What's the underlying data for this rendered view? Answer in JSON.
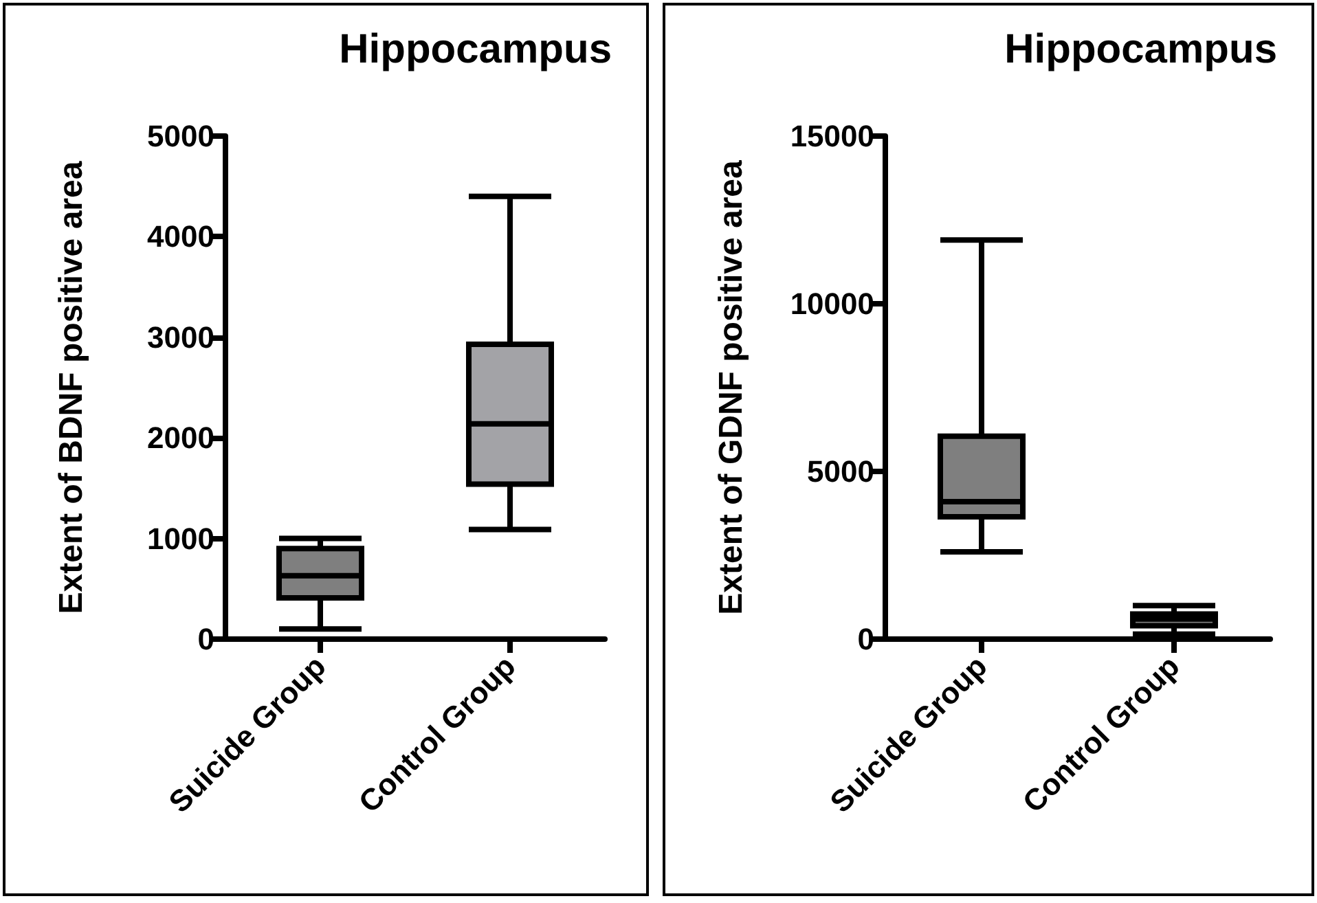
{
  "chart_data": [
    {
      "type": "box",
      "title": "Hippocampus",
      "ylabel": "Extent of BDNF positive area",
      "categories": [
        "Suicide Group",
        "Control Group"
      ],
      "boxes": [
        {
          "low": 100,
          "q1": 410,
          "median": 630,
          "q3": 900,
          "high": 1000
        },
        {
          "low": 1090,
          "q1": 1540,
          "median": 2140,
          "q3": 2930,
          "high": 4400
        }
      ],
      "colors": [
        "#7f7f7f",
        "#a3a3a7"
      ],
      "ylim": [
        0,
        5000
      ],
      "yticks": [
        0,
        1000,
        2000,
        3000,
        4000,
        5000
      ],
      "grid": false
    },
    {
      "type": "box",
      "title": "Hippocampus",
      "ylabel": "Extent of GDNF positive area",
      "categories": [
        "Suicide Group",
        "Control Group"
      ],
      "boxes": [
        {
          "low": 2600,
          "q1": 3650,
          "median": 4100,
          "q3": 6050,
          "high": 11900
        },
        {
          "low": 150,
          "q1": 400,
          "median": 600,
          "q3": 750,
          "high": 1000
        }
      ],
      "colors": [
        "#7f7f7f",
        "#7f7f7f"
      ],
      "ylim": [
        0,
        15000
      ],
      "yticks": [
        0,
        5000,
        10000,
        15000
      ],
      "grid": false
    }
  ]
}
